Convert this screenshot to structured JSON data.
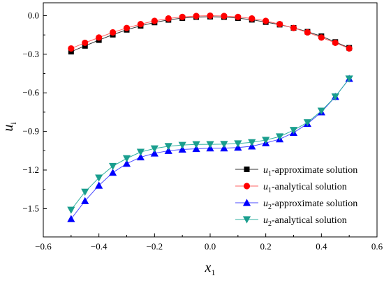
{
  "chart_data": {
    "type": "line",
    "xlabel": "x",
    "xlabel_sub": "1",
    "ylabel": "u",
    "ylabel_sub": "i",
    "xlim": [
      -0.6,
      0.6
    ],
    "ylim": [
      -1.72,
      0.1
    ],
    "x_ticks": [
      -0.6,
      -0.4,
      -0.2,
      0.0,
      0.2,
      0.4,
      0.6
    ],
    "x_tick_labels": [
      "−0.6",
      "−0.4",
      "−0.2",
      "0.0",
      "0.2",
      "0.4",
      "0.6"
    ],
    "y_ticks": [
      0.0,
      -0.3,
      -0.6,
      -0.9,
      -1.2,
      -1.5
    ],
    "y_tick_labels": [
      "0.0",
      "−0.3",
      "−0.6",
      "−0.9",
      "−1.2",
      "−1.5"
    ],
    "legend_position": "bottom-right",
    "x": [
      -0.5,
      -0.45,
      -0.4,
      -0.35,
      -0.3,
      -0.25,
      -0.2,
      -0.15,
      -0.1,
      -0.05,
      0.0,
      0.05,
      0.1,
      0.15,
      0.2,
      0.25,
      0.3,
      0.35,
      0.4,
      0.45,
      0.5
    ],
    "series": [
      {
        "name": "u1-approximate solution",
        "name_main": "u",
        "name_sub": "1",
        "name_rest": "-approximate solution",
        "color": "#000000",
        "line_color": "#333333",
        "marker": "square",
        "values": [
          -0.28,
          -0.235,
          -0.19,
          -0.148,
          -0.11,
          -0.079,
          -0.053,
          -0.033,
          -0.019,
          -0.011,
          -0.008,
          -0.011,
          -0.019,
          -0.032,
          -0.05,
          -0.07,
          -0.095,
          -0.125,
          -0.16,
          -0.205,
          -0.25
        ]
      },
      {
        "name": "u1-analytical solution",
        "name_main": "u",
        "name_sub": "1",
        "name_rest": "-analytical solution",
        "color": "#ff0000",
        "line_color": "#ff6060",
        "marker": "circle",
        "values": [
          -0.255,
          -0.211,
          -0.17,
          -0.13,
          -0.096,
          -0.066,
          -0.041,
          -0.022,
          -0.01,
          -0.003,
          0.0,
          -0.003,
          -0.01,
          -0.022,
          -0.041,
          -0.066,
          -0.096,
          -0.13,
          -0.17,
          -0.211,
          -0.255
        ]
      },
      {
        "name": "u2-approximate solution",
        "name_main": "u",
        "name_sub": "2",
        "name_rest": "-approximate solution",
        "color": "#0000ff",
        "line_color": "#4a4aff",
        "marker": "triangle-up",
        "values": [
          -1.58,
          -1.44,
          -1.32,
          -1.22,
          -1.15,
          -1.1,
          -1.07,
          -1.05,
          -1.04,
          -1.035,
          -1.03,
          -1.03,
          -1.025,
          -1.015,
          -0.99,
          -0.96,
          -0.91,
          -0.84,
          -0.75,
          -0.63,
          -0.49
        ]
      },
      {
        "name": "u2-analytical solution",
        "name_main": "u",
        "name_sub": "2",
        "name_rest": "-analytical solution",
        "color": "#1a9e8e",
        "line_color": "#30b0a0",
        "marker": "triangle-down",
        "values": [
          -1.51,
          -1.37,
          -1.26,
          -1.17,
          -1.11,
          -1.06,
          -1.033,
          -1.015,
          -1.006,
          -1.001,
          -1.0,
          -0.999,
          -0.994,
          -0.985,
          -0.967,
          -0.94,
          -0.89,
          -0.83,
          -0.74,
          -0.63,
          -0.49
        ]
      }
    ]
  }
}
